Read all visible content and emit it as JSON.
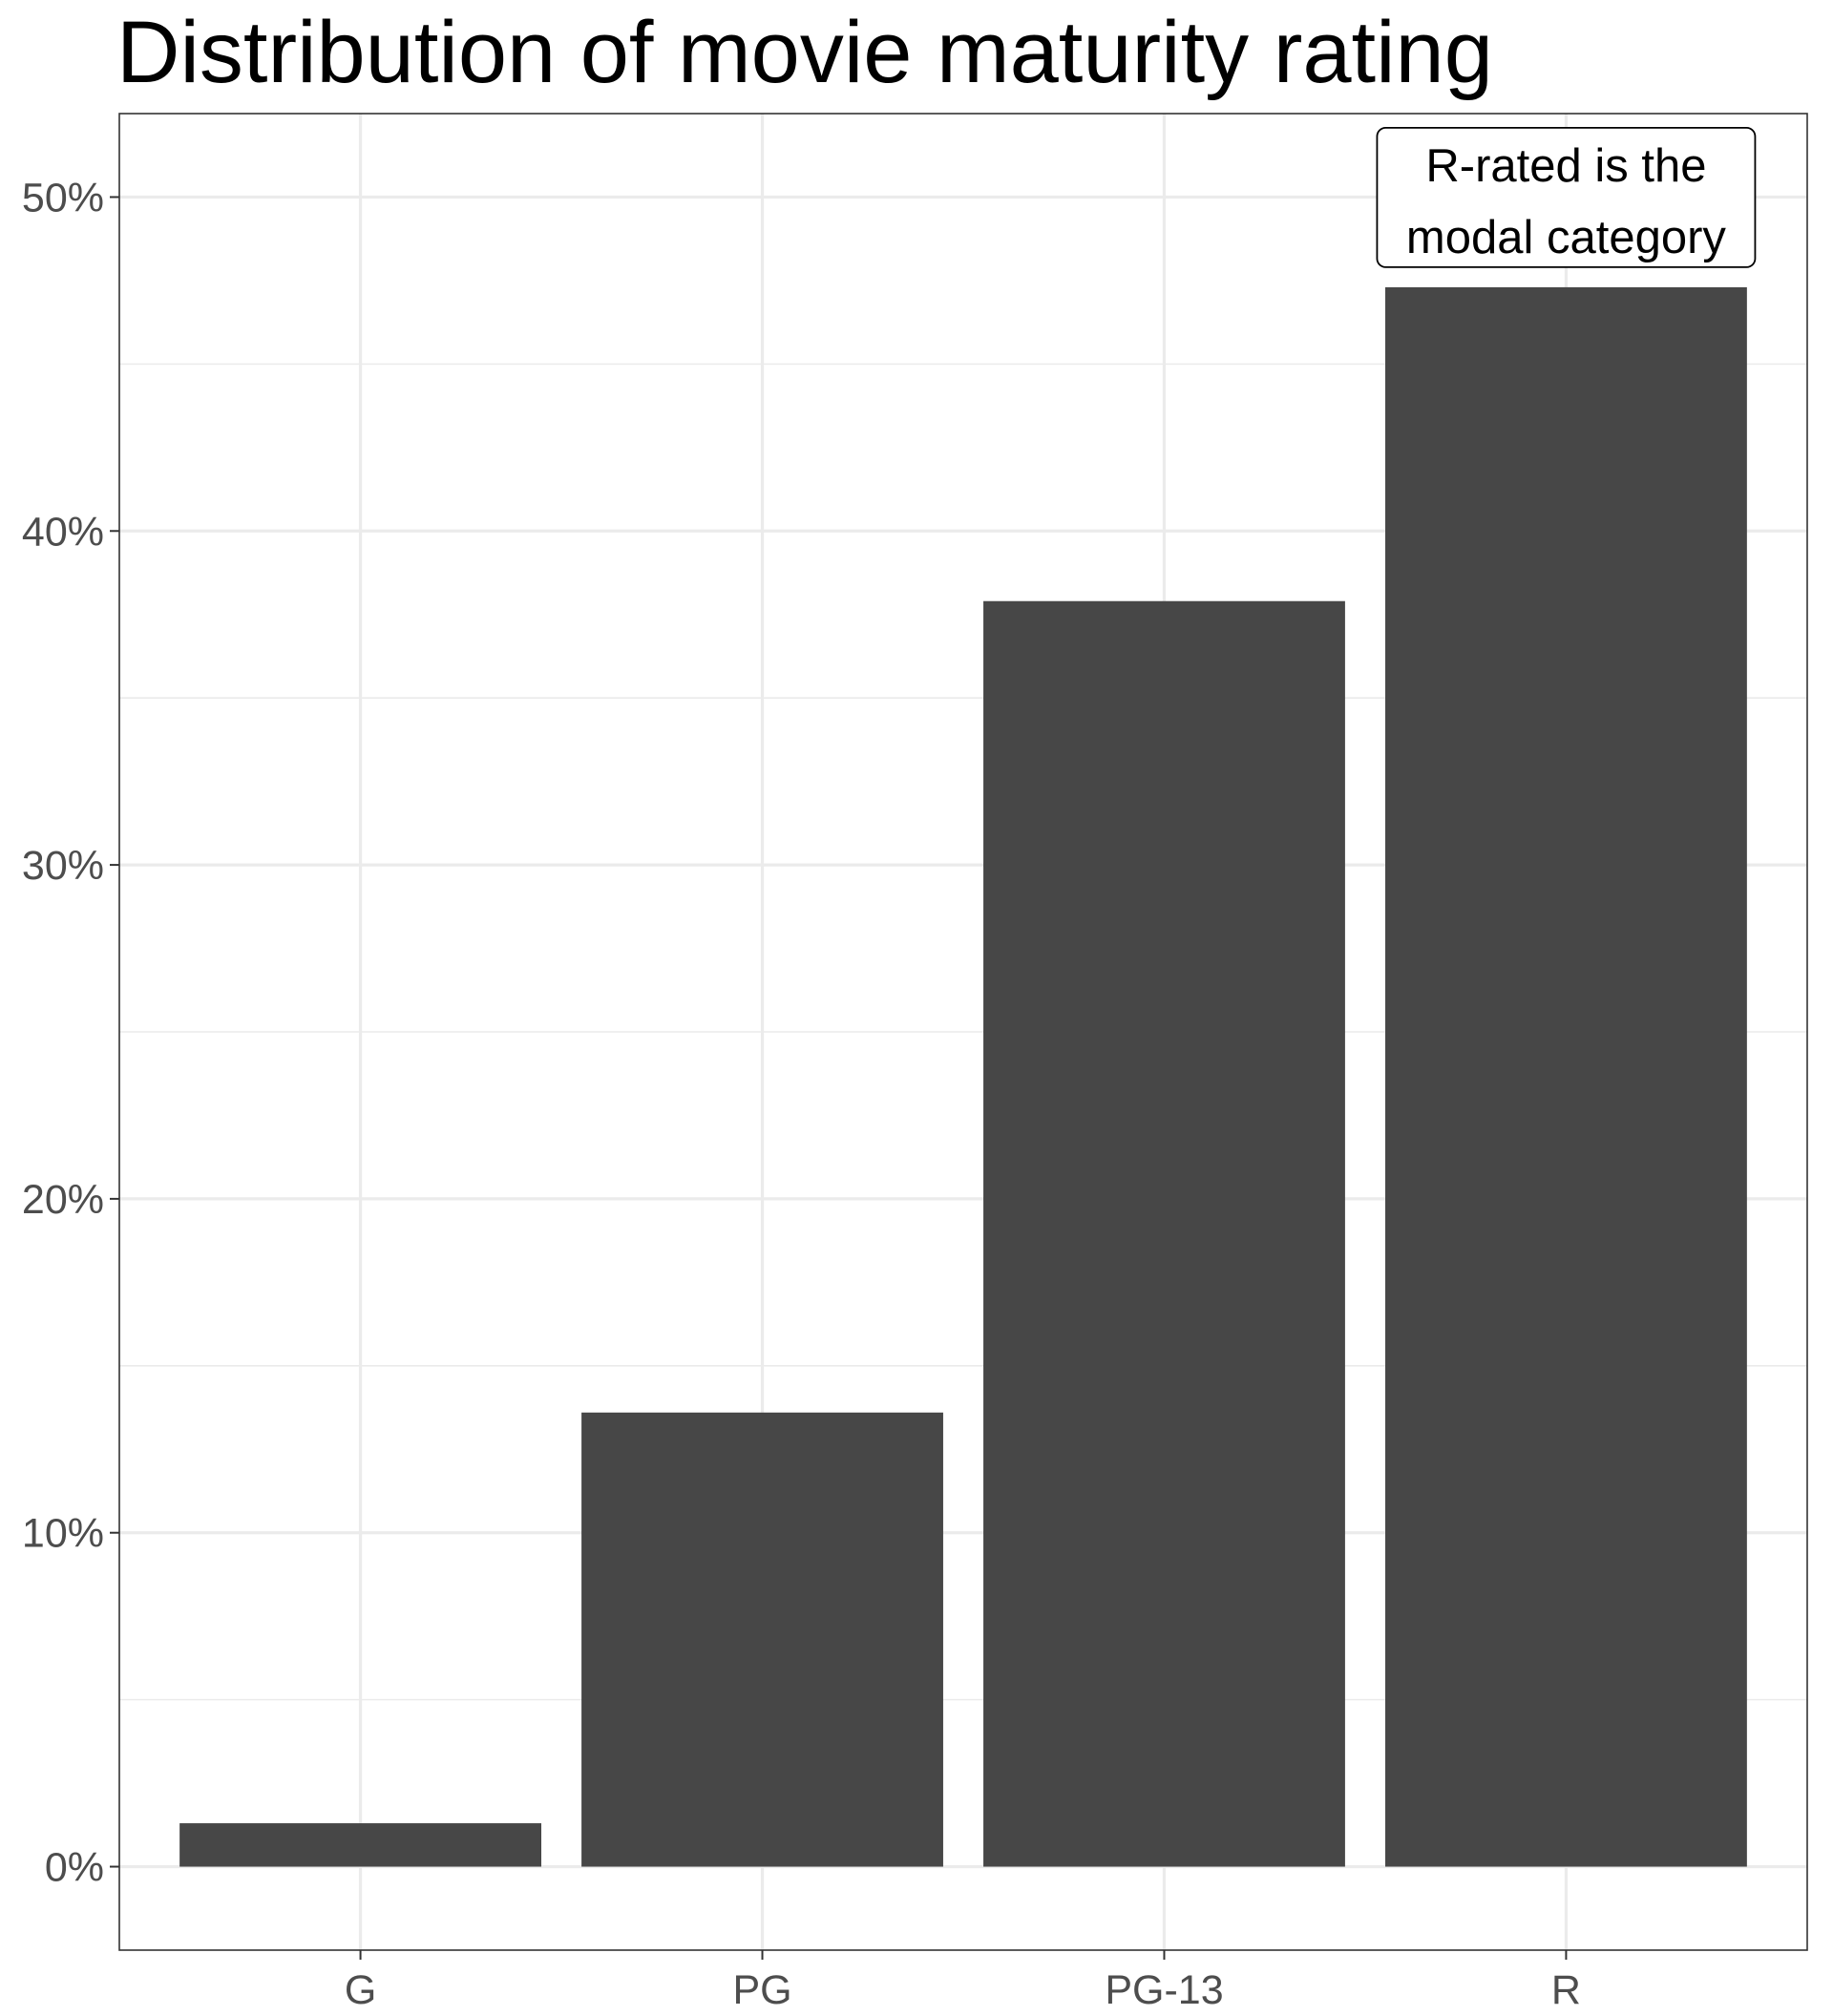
{
  "chart_data": {
    "type": "bar",
    "title": "Distribution of movie maturity rating",
    "xlabel": "",
    "ylabel": "",
    "categories": [
      "G",
      "PG",
      "PG-13",
      "R"
    ],
    "values": [
      1.3,
      13.6,
      37.9,
      47.3
    ],
    "value_unit": "%",
    "ylim": [
      -2.5,
      52.5
    ],
    "y_ticks": [
      0,
      10,
      20,
      30,
      40,
      50
    ],
    "y_tick_labels": [
      "0%",
      "10%",
      "20%",
      "30%",
      "40%",
      "50%"
    ],
    "grid": true,
    "bar_color": "#474747",
    "annotation": {
      "category": "R",
      "lines": [
        "R-rated is the",
        "modal category"
      ]
    }
  }
}
